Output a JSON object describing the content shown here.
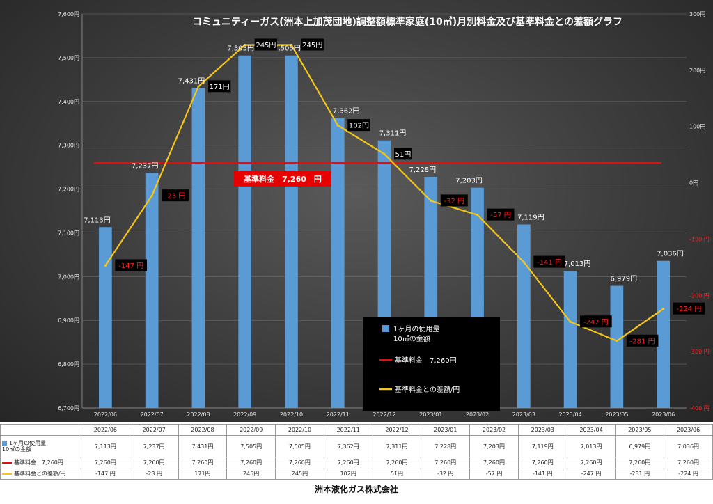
{
  "chart_data": {
    "type": "bar",
    "title": "コミュニティーガス(洲本上加茂団地)調整額標準家庭(10㎥)月別料金及び基準料金との差額グラフ",
    "categories": [
      "2022/06",
      "2022/07",
      "2022/08",
      "2022/09",
      "2022/10",
      "2022/11",
      "2022/12",
      "2023/01",
      "2023/02",
      "2023/03",
      "2023/04",
      "2023/05",
      "2023/06"
    ],
    "ylim_left": [
      6700,
      7600
    ],
    "ylim_right": [
      -400,
      300
    ],
    "left_ticks": [
      "6,700円",
      "6,800円",
      "6,900円",
      "7,000円",
      "7,100円",
      "7,200円",
      "7,300円",
      "7,400円",
      "7,500円",
      "7,600円"
    ],
    "right_ticks": [
      "-400 円",
      "-300 円",
      "-200 円",
      "-100 円",
      "0円",
      "100円",
      "200円",
      "300円"
    ],
    "series": [
      {
        "name": "1ヶ月の使用量\n10㎥の金額",
        "kind": "bar",
        "color": "#5b9bd5",
        "values": [
          7113,
          7237,
          7431,
          7505,
          7505,
          7362,
          7311,
          7228,
          7203,
          7119,
          7013,
          6979,
          7036
        ],
        "labels": [
          "7,113円",
          "7,237円",
          "7,431円",
          "7,505円",
          "7,505円",
          "7,362円",
          "7,311円",
          "7,228円",
          "7,203円",
          "7,119円",
          "7,013円",
          "6,979円",
          "7,036円"
        ]
      },
      {
        "name": "基準料金　7,260円",
        "kind": "line",
        "color": "#e01010",
        "values": [
          7260,
          7260,
          7260,
          7260,
          7260,
          7260,
          7260,
          7260,
          7260,
          7260,
          7260,
          7260,
          7260
        ],
        "labels": [
          "7,260円",
          "7,260円",
          "7,260円",
          "7,260円",
          "7,260円",
          "7,260円",
          "7,260円",
          "7,260円",
          "7,260円",
          "7,260円",
          "7,260円",
          "7,260円",
          "7,260円"
        ]
      },
      {
        "name": "基準料金との差額/円",
        "kind": "line",
        "axis": "right",
        "color": "#f5c518",
        "values": [
          -147,
          -23,
          171,
          245,
          245,
          102,
          51,
          -32,
          -57,
          -141,
          -247,
          -281,
          -224
        ],
        "labels": [
          "-147 円",
          "-23 円",
          "171円",
          "245円",
          "245円",
          "102円",
          "51円",
          "-32 円",
          "-57 円",
          "-141 円",
          "-247 円",
          "-281 円",
          "-224 円"
        ]
      }
    ],
    "annotation": "基準料金　7,260　円",
    "chart_legend": {
      "bar": "1ヶ月の使用量\n10㎥の金額",
      "base": "基準料金　7,260円",
      "diff": "基準料金との差額/円"
    }
  },
  "table": {
    "row_labels": [
      "1ヶ月の使用量\n10㎥の金額",
      "基準料金　7,260円",
      "基準料金との差額/円"
    ]
  },
  "footer": "洲本液化ガス株式会社"
}
